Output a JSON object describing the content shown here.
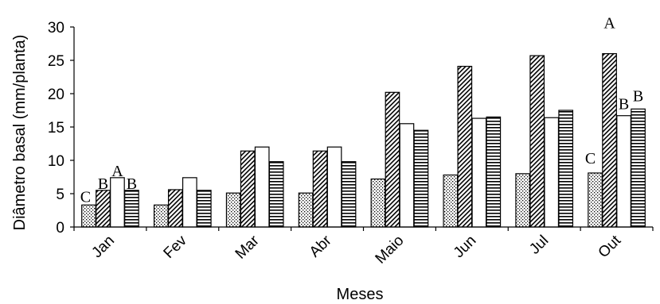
{
  "chart_data": {
    "type": "bar",
    "title": "",
    "xlabel": "Meses",
    "ylabel": "Diâmetro basal (mm/planta)",
    "ylim": [
      0,
      30
    ],
    "yticks": [
      0,
      5,
      10,
      15,
      20,
      25,
      30
    ],
    "grid": false,
    "legend": "none",
    "categories": [
      "Jan",
      "Fev",
      "Mar",
      "Abr",
      "Maio",
      "Jun",
      "Jul",
      "Out"
    ],
    "series": [
      {
        "pattern": "dotted",
        "values": [
          3.3,
          3.3,
          5.1,
          5.1,
          7.2,
          7.8,
          8.0,
          8.1
        ]
      },
      {
        "pattern": "diagonal-hatch",
        "values": [
          5.5,
          5.6,
          11.4,
          11.4,
          20.2,
          24.1,
          25.7,
          26.0
        ]
      },
      {
        "pattern": "empty",
        "values": [
          7.4,
          7.4,
          12.0,
          12.0,
          15.5,
          16.3,
          16.4,
          16.7
        ]
      },
      {
        "pattern": "horizontal-stripes",
        "values": [
          5.5,
          5.5,
          9.8,
          9.8,
          14.5,
          16.5,
          17.5,
          17.7
        ]
      }
    ],
    "annotations": [
      {
        "category": "Jan",
        "series": 0,
        "text": "C"
      },
      {
        "category": "Jan",
        "series": 1,
        "text": "B"
      },
      {
        "category": "Jan",
        "series": 2,
        "text": "A"
      },
      {
        "category": "Jan",
        "series": 3,
        "text": "B"
      },
      {
        "category": "Out",
        "series": 0,
        "text": "C"
      },
      {
        "category": "Out",
        "series": 1,
        "text": "A"
      },
      {
        "category": "Out",
        "series": 2,
        "text": "B"
      },
      {
        "category": "Out",
        "series": 3,
        "text": "B"
      }
    ]
  }
}
